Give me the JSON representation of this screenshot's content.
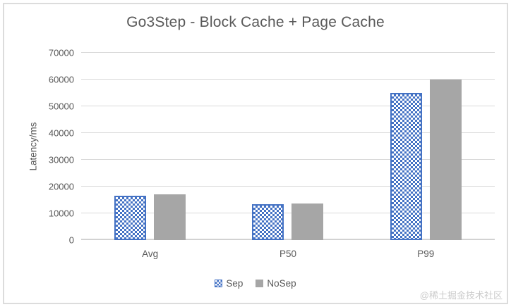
{
  "chart_data": {
    "type": "bar",
    "title": "Go3Step - Block Cache + Page Cache",
    "xlabel": "",
    "ylabel": "Latency/ms",
    "categories": [
      "Avg",
      "P50",
      "P99"
    ],
    "series": [
      {
        "name": "Sep",
        "pattern": "checker",
        "color": "#4472C4",
        "values": [
          16500,
          13300,
          55000
        ]
      },
      {
        "name": "NoSep",
        "pattern": "solid",
        "color": "#A6A6A6",
        "values": [
          17000,
          13600,
          60000
        ]
      }
    ],
    "ylim": [
      0,
      70000
    ],
    "yticks": [
      0,
      10000,
      20000,
      30000,
      40000,
      50000,
      60000,
      70000
    ],
    "grid": true,
    "legend_position": "bottom"
  },
  "watermark": "@稀土掘金技术社区",
  "colors": {
    "series_blue": "#4472C4",
    "series_gray": "#A6A6A6",
    "gridline": "#D9D9D9",
    "text": "#595959",
    "frame_border": "#DCDCDC",
    "watermark": "#CBCBCB"
  }
}
